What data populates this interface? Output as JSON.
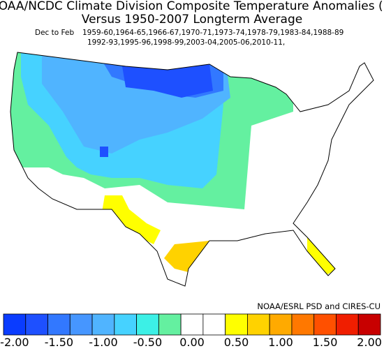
{
  "header": {
    "title_lines": [
      "NOAA/NCDC Climate Division Composite Temperature Anomalies (F)",
      "Versus 1950-2007 Longterm Average"
    ],
    "season": "Dec to Feb",
    "years_lines": [
      "1959-60,1964-65,1966-67,1970-71,1973-74,1978-79,1983-84,1988-89",
      "1992-93,1995-96,1998-99,2003-04,2005-06,2010-11,"
    ]
  },
  "credit": "NOAA/ESRL PSD and CIRES-CU",
  "colorbar": {
    "colors": [
      "#0a3cff",
      "#1e50ff",
      "#3278ff",
      "#4696ff",
      "#50b4ff",
      "#46d2ff",
      "#3cf0e6",
      "#64f0a0",
      "#ffffff",
      "#ffffff",
      "#ffff00",
      "#ffd200",
      "#ffaa00",
      "#ff7800",
      "#ff5000",
      "#f01e00",
      "#c80000"
    ],
    "labels": [
      "-2.00",
      "-1.50",
      "-1.00",
      "-0.50",
      "0.00",
      "0.50",
      "1.00",
      "1.50",
      "2.00"
    ]
  }
}
